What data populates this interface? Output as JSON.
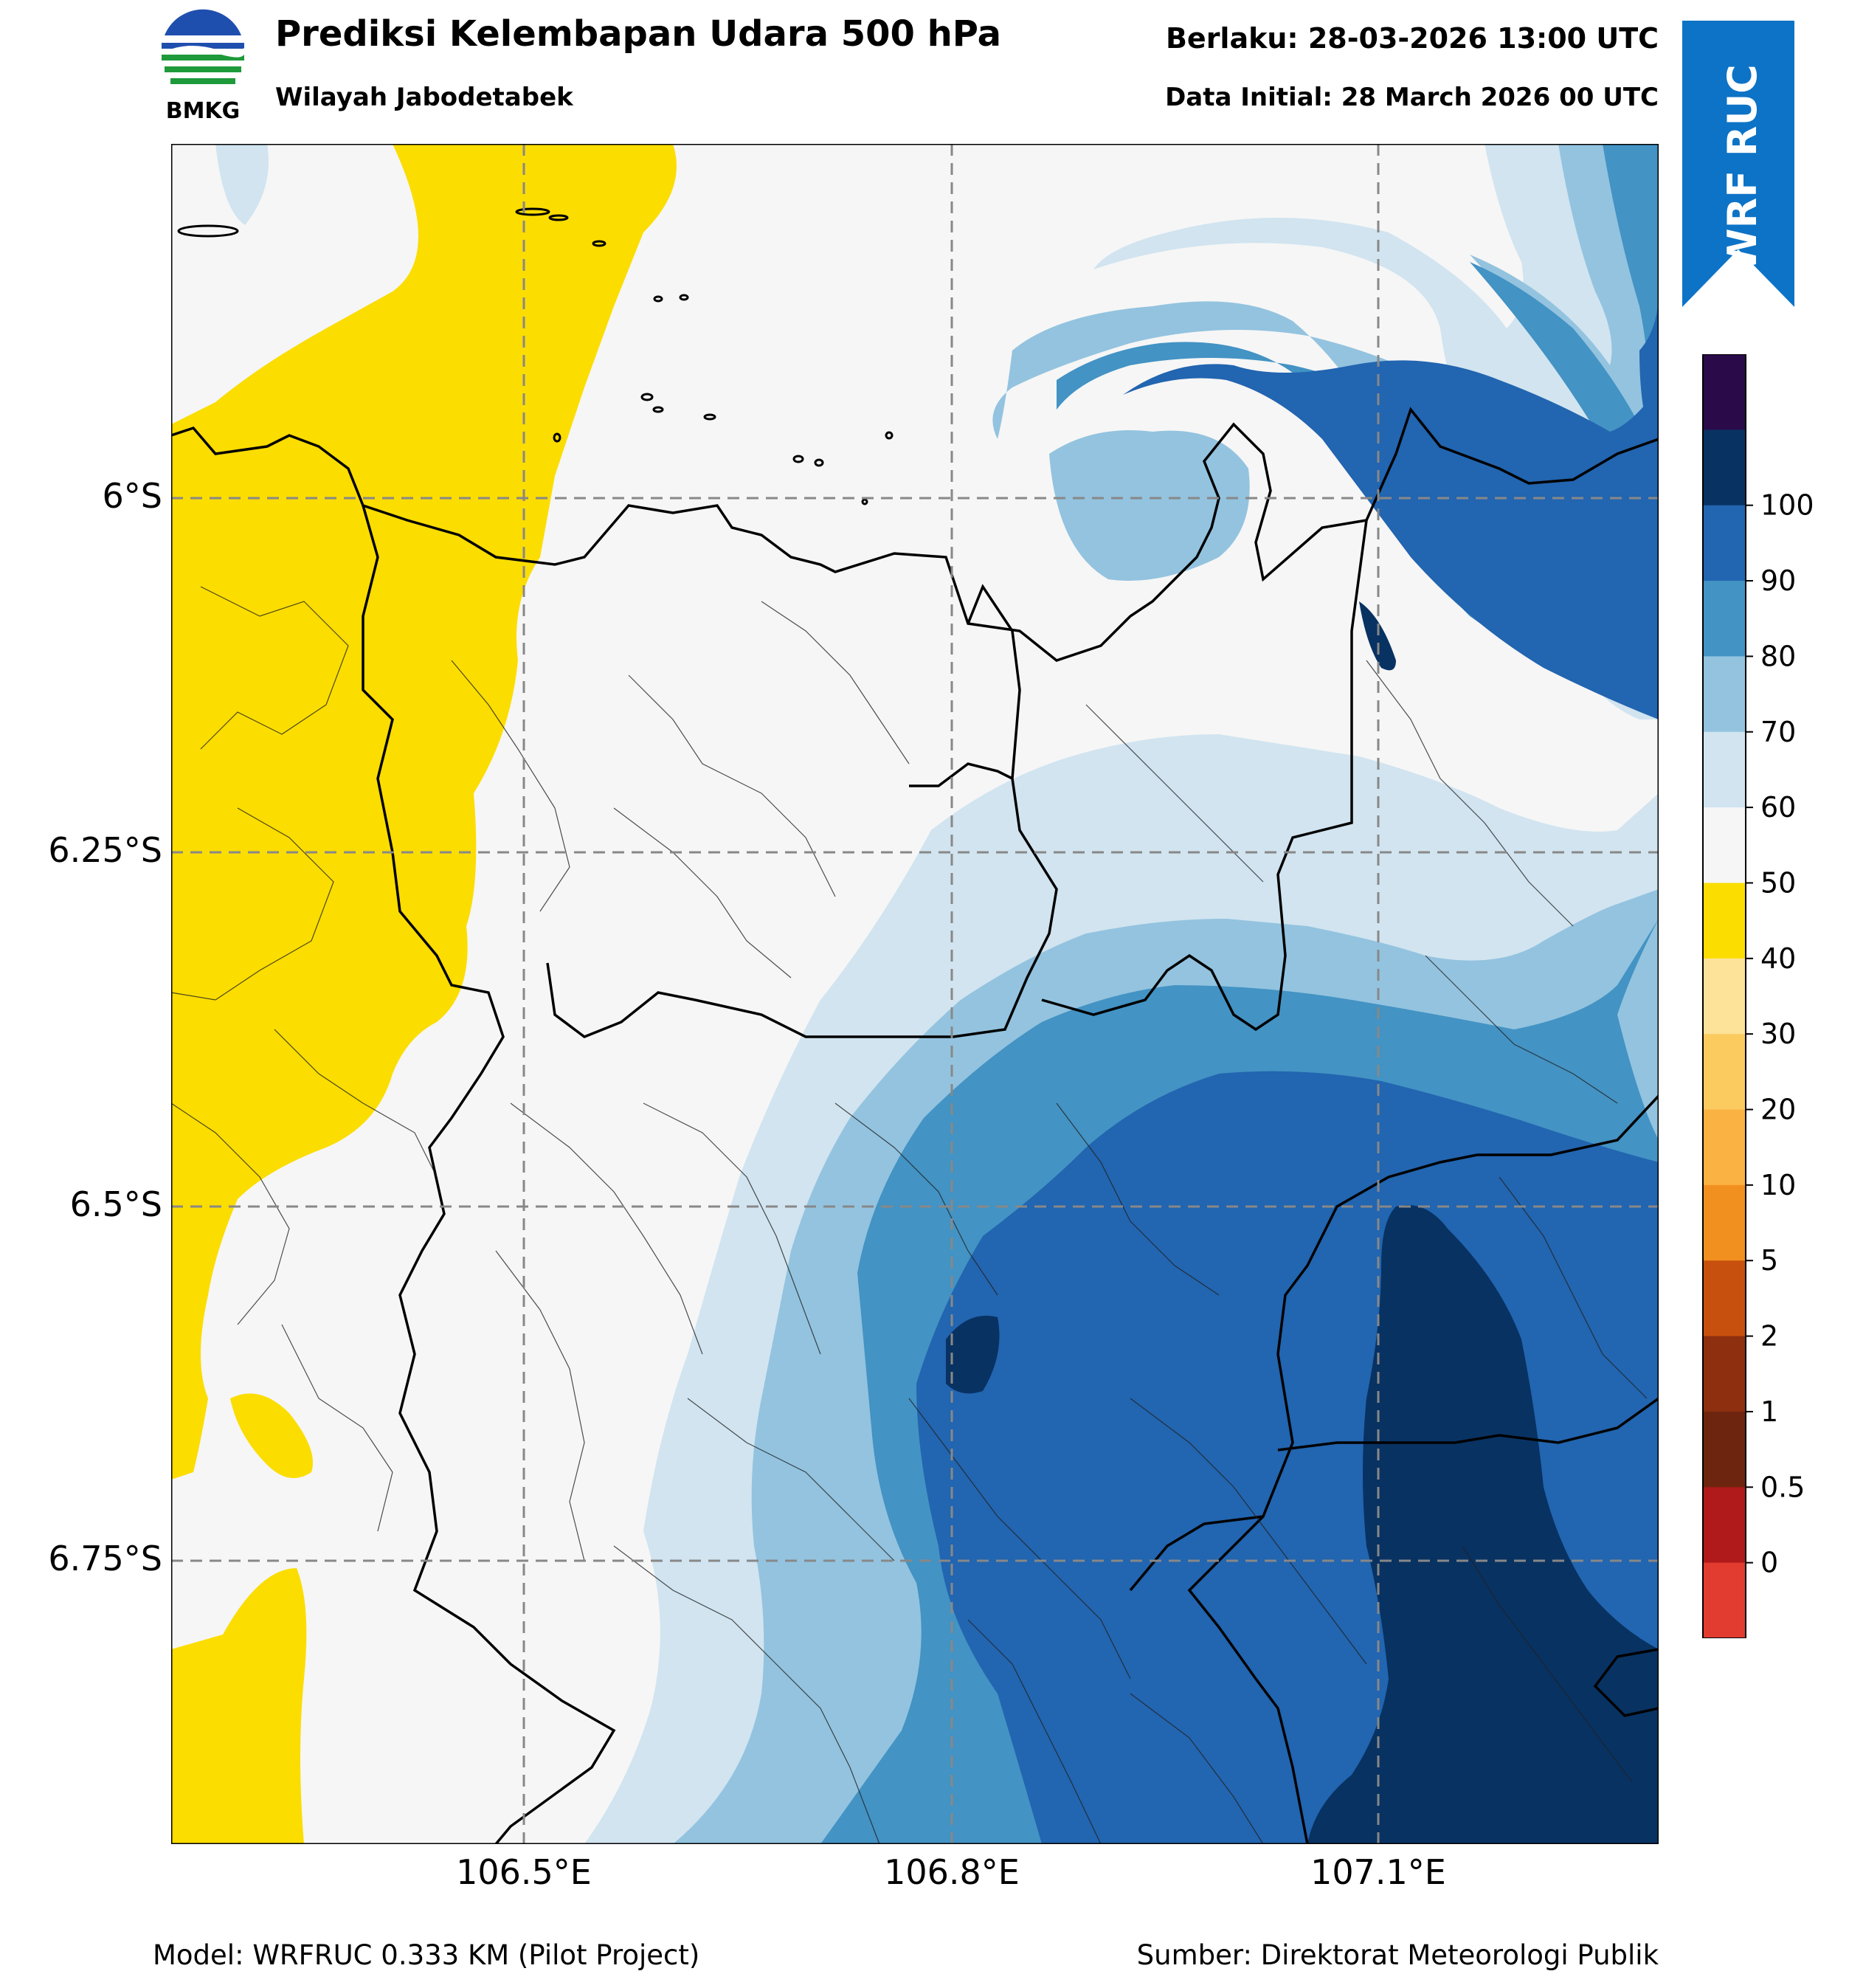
{
  "header": {
    "title": "Prediksi Kelembapan Udara 500 hPa",
    "region": "Wilayah Jabodetabek",
    "valid_time": "Berlaku: 28-03-2026 13:00 UTC",
    "init_time": "Data Initial: 28 March 2026 00 UTC"
  },
  "logo": {
    "text": "BMKG",
    "colors": {
      "blue": "#1f4fae",
      "green": "#1e9a3a"
    }
  },
  "ribbon": {
    "text": "WRF RUC",
    "color": "#0d73c6"
  },
  "axes": {
    "lon_ticks": [
      "106.5°E",
      "106.8°E",
      "107.1°E"
    ],
    "lat_ticks": [
      "6°S",
      "6.25°S",
      "6.5°S",
      "6.75°S"
    ]
  },
  "colorbar": {
    "labels": [
      "0",
      "0.5",
      "1",
      "2",
      "5",
      "10",
      "20",
      "30",
      "40",
      "50",
      "60",
      "70",
      "80",
      "90",
      "100"
    ],
    "colors": [
      "#e23c30",
      "#b01a1a",
      "#6e2510",
      "#8e3010",
      "#c8500e",
      "#f2901f",
      "#fab243",
      "#fbcb60",
      "#fde29a",
      "#fbdd00",
      "#f6f6f6",
      "#d1e4f0",
      "#93c3df",
      "#4393c4",
      "#2265b0",
      "#083262",
      "#2b0a4a"
    ]
  },
  "footer": {
    "model": "Model: WRFRUC 0.333 KM (Pilot Project)",
    "source": "Sumber: Direktorat Meteorologi Publik"
  }
}
